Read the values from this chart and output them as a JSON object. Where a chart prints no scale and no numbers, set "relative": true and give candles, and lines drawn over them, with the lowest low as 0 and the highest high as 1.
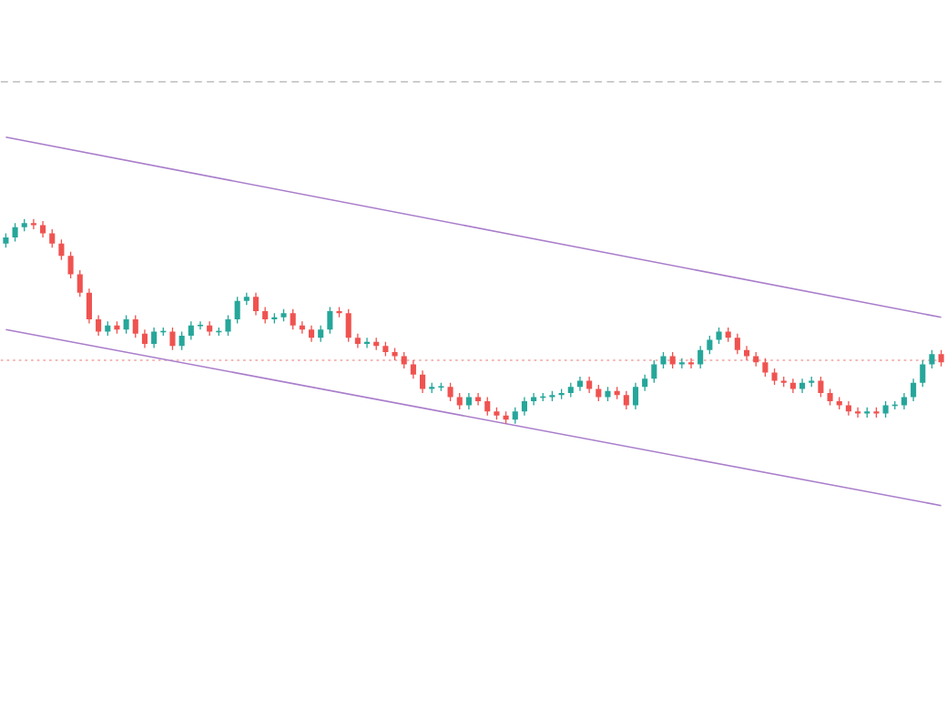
{
  "chart_data": {
    "type": "candlestick",
    "relative": true,
    "categories": [
      null,
      null,
      null,
      null,
      null,
      null,
      null,
      null,
      null,
      null,
      null,
      null,
      null,
      null,
      null,
      null,
      null,
      null,
      null,
      null,
      null,
      null,
      null,
      null,
      null,
      null,
      null,
      null,
      null,
      null,
      null,
      null,
      null,
      null,
      null,
      null,
      null,
      null,
      null,
      null,
      null,
      null,
      null,
      null,
      null,
      null,
      null,
      null,
      null,
      null,
      null,
      null,
      null,
      null,
      null,
      null,
      null,
      null,
      null,
      null,
      null,
      null,
      null,
      null,
      null,
      null,
      null,
      null,
      null,
      null,
      null,
      null,
      null,
      null,
      null,
      null,
      null,
      null,
      null,
      null,
      null,
      null,
      null,
      null,
      null,
      null,
      null,
      null,
      null,
      null,
      null,
      null,
      null,
      null,
      null,
      null,
      null,
      null,
      null,
      null,
      null,
      null
    ],
    "ohlc": [
      [
        0.88,
        0.93,
        0.86,
        0.91
      ],
      [
        0.91,
        0.98,
        0.89,
        0.96
      ],
      [
        0.96,
        1.0,
        0.94,
        0.98
      ],
      [
        0.98,
        1.0,
        0.95,
        0.97
      ],
      [
        0.97,
        0.99,
        0.91,
        0.93
      ],
      [
        0.93,
        0.95,
        0.86,
        0.88
      ],
      [
        0.88,
        0.9,
        0.8,
        0.82
      ],
      [
        0.82,
        0.84,
        0.71,
        0.73
      ],
      [
        0.73,
        0.75,
        0.62,
        0.64
      ],
      [
        0.64,
        0.66,
        0.49,
        0.51
      ],
      [
        0.51,
        0.53,
        0.43,
        0.45
      ],
      [
        0.45,
        0.5,
        0.43,
        0.48
      ],
      [
        0.48,
        0.5,
        0.44,
        0.46
      ],
      [
        0.46,
        0.53,
        0.44,
        0.51
      ],
      [
        0.51,
        0.53,
        0.42,
        0.44
      ],
      [
        0.44,
        0.46,
        0.37,
        0.39
      ],
      [
        0.39,
        0.47,
        0.37,
        0.45
      ],
      [
        0.45,
        0.47,
        0.43,
        0.45
      ],
      [
        0.45,
        0.47,
        0.36,
        0.38
      ],
      [
        0.38,
        0.45,
        0.36,
        0.43
      ],
      [
        0.43,
        0.5,
        0.41,
        0.48
      ],
      [
        0.48,
        0.5,
        0.46,
        0.48
      ],
      [
        0.48,
        0.5,
        0.43,
        0.45
      ],
      [
        0.45,
        0.47,
        0.43,
        0.45
      ],
      [
        0.45,
        0.53,
        0.43,
        0.51
      ],
      [
        0.51,
        0.62,
        0.49,
        0.6
      ],
      [
        0.6,
        0.64,
        0.58,
        0.62
      ],
      [
        0.62,
        0.64,
        0.53,
        0.55
      ],
      [
        0.55,
        0.57,
        0.49,
        0.51
      ],
      [
        0.51,
        0.54,
        0.49,
        0.52
      ],
      [
        0.52,
        0.56,
        0.5,
        0.54
      ],
      [
        0.54,
        0.56,
        0.46,
        0.48
      ],
      [
        0.48,
        0.5,
        0.44,
        0.46
      ],
      [
        0.46,
        0.48,
        0.4,
        0.42
      ],
      [
        0.42,
        0.48,
        0.4,
        0.46
      ],
      [
        0.46,
        0.57,
        0.44,
        0.55
      ],
      [
        0.55,
        0.57,
        0.52,
        0.54
      ],
      [
        0.54,
        0.56,
        0.4,
        0.42
      ],
      [
        0.42,
        0.44,
        0.37,
        0.39
      ],
      [
        0.39,
        0.42,
        0.37,
        0.4
      ],
      [
        0.4,
        0.42,
        0.36,
        0.38
      ],
      [
        0.38,
        0.4,
        0.33,
        0.35
      ],
      [
        0.35,
        0.37,
        0.31,
        0.33
      ],
      [
        0.33,
        0.35,
        0.27,
        0.29
      ],
      [
        0.29,
        0.31,
        0.22,
        0.24
      ],
      [
        0.24,
        0.26,
        0.15,
        0.17
      ],
      [
        0.17,
        0.2,
        0.15,
        0.18
      ],
      [
        0.18,
        0.2,
        0.16,
        0.18
      ],
      [
        0.18,
        0.2,
        0.11,
        0.13
      ],
      [
        0.13,
        0.15,
        0.07,
        0.09
      ],
      [
        0.09,
        0.15,
        0.07,
        0.13
      ],
      [
        0.13,
        0.15,
        0.09,
        0.11
      ],
      [
        0.11,
        0.13,
        0.04,
        0.06
      ],
      [
        0.06,
        0.08,
        0.02,
        0.04
      ],
      [
        0.04,
        0.06,
        0.0,
        0.02
      ],
      [
        0.02,
        0.08,
        0.0,
        0.06
      ],
      [
        0.06,
        0.13,
        0.04,
        0.11
      ],
      [
        0.11,
        0.15,
        0.09,
        0.13
      ],
      [
        0.13,
        0.15,
        0.11,
        0.13
      ],
      [
        0.13,
        0.16,
        0.11,
        0.14
      ],
      [
        0.14,
        0.17,
        0.12,
        0.15
      ],
      [
        0.15,
        0.2,
        0.13,
        0.18
      ],
      [
        0.18,
        0.23,
        0.16,
        0.21
      ],
      [
        0.21,
        0.23,
        0.15,
        0.17
      ],
      [
        0.17,
        0.19,
        0.11,
        0.13
      ],
      [
        0.13,
        0.18,
        0.11,
        0.16
      ],
      [
        0.16,
        0.18,
        0.12,
        0.14
      ],
      [
        0.14,
        0.16,
        0.07,
        0.09
      ],
      [
        0.09,
        0.2,
        0.07,
        0.18
      ],
      [
        0.18,
        0.24,
        0.16,
        0.22
      ],
      [
        0.22,
        0.31,
        0.2,
        0.29
      ],
      [
        0.29,
        0.35,
        0.27,
        0.33
      ],
      [
        0.33,
        0.35,
        0.27,
        0.29
      ],
      [
        0.29,
        0.32,
        0.27,
        0.3
      ],
      [
        0.3,
        0.32,
        0.27,
        0.29
      ],
      [
        0.29,
        0.38,
        0.27,
        0.36
      ],
      [
        0.36,
        0.43,
        0.34,
        0.41
      ],
      [
        0.41,
        0.47,
        0.39,
        0.45
      ],
      [
        0.45,
        0.47,
        0.4,
        0.42
      ],
      [
        0.42,
        0.44,
        0.34,
        0.36
      ],
      [
        0.36,
        0.38,
        0.31,
        0.33
      ],
      [
        0.33,
        0.35,
        0.28,
        0.3
      ],
      [
        0.3,
        0.32,
        0.23,
        0.25
      ],
      [
        0.25,
        0.27,
        0.19,
        0.21
      ],
      [
        0.21,
        0.23,
        0.18,
        0.2
      ],
      [
        0.2,
        0.22,
        0.15,
        0.17
      ],
      [
        0.17,
        0.22,
        0.15,
        0.2
      ],
      [
        0.2,
        0.23,
        0.18,
        0.21
      ],
      [
        0.21,
        0.23,
        0.13,
        0.15
      ],
      [
        0.15,
        0.17,
        0.09,
        0.11
      ],
      [
        0.11,
        0.13,
        0.07,
        0.09
      ],
      [
        0.09,
        0.11,
        0.04,
        0.06
      ],
      [
        0.06,
        0.08,
        0.03,
        0.05
      ],
      [
        0.05,
        0.08,
        0.03,
        0.06
      ],
      [
        0.06,
        0.08,
        0.03,
        0.05
      ],
      [
        0.05,
        0.11,
        0.03,
        0.09
      ],
      [
        0.09,
        0.11,
        0.07,
        0.09
      ],
      [
        0.09,
        0.15,
        0.07,
        0.13
      ],
      [
        0.13,
        0.22,
        0.11,
        0.2
      ],
      [
        0.2,
        0.31,
        0.18,
        0.29
      ],
      [
        0.29,
        0.36,
        0.27,
        0.34
      ],
      [
        0.34,
        0.36,
        0.28,
        0.3
      ]
    ],
    "series": [
      {
        "type": "line",
        "values": [
          1.4,
          null,
          null,
          null,
          null,
          null,
          null,
          null,
          null,
          null,
          null,
          null,
          null,
          null,
          null,
          null,
          null,
          null,
          null,
          null,
          null,
          null,
          null,
          null,
          null,
          null,
          null,
          null,
          null,
          null,
          null,
          null,
          null,
          null,
          null,
          null,
          null,
          null,
          null,
          null,
          null,
          null,
          null,
          null,
          null,
          null,
          null,
          null,
          null,
          null,
          null,
          null,
          null,
          null,
          null,
          null,
          null,
          null,
          null,
          null,
          null,
          null,
          null,
          null,
          null,
          null,
          null,
          null,
          null,
          null,
          null,
          null,
          null,
          null,
          null,
          null,
          null,
          null,
          null,
          null,
          null,
          null,
          null,
          null,
          null,
          null,
          null,
          null,
          null,
          null,
          null,
          null,
          null,
          null,
          null,
          null,
          null,
          null,
          null,
          null,
          null,
          0.52
        ],
        "color": "#a97dcb"
      },
      {
        "type": "line",
        "values": [
          0.46,
          null,
          null,
          null,
          null,
          null,
          null,
          null,
          null,
          null,
          null,
          null,
          null,
          null,
          null,
          null,
          null,
          null,
          null,
          null,
          null,
          null,
          null,
          null,
          null,
          null,
          null,
          null,
          null,
          null,
          null,
          null,
          null,
          null,
          null,
          null,
          null,
          null,
          null,
          null,
          null,
          null,
          null,
          null,
          null,
          null,
          null,
          null,
          null,
          null,
          null,
          null,
          null,
          null,
          null,
          null,
          null,
          null,
          null,
          null,
          null,
          null,
          null,
          null,
          null,
          null,
          null,
          null,
          null,
          null,
          null,
          null,
          null,
          null,
          null,
          null,
          null,
          null,
          null,
          null,
          null,
          null,
          null,
          null,
          null,
          null,
          null,
          null,
          null,
          null,
          null,
          null,
          null,
          null,
          null,
          null,
          null,
          null,
          null,
          null,
          null,
          -0.4
        ],
        "color": "#a97dcb"
      }
    ],
    "ref_lines": [
      {
        "axis": "y",
        "value": 1.67,
        "color": "#b4b4b4",
        "line_style": "dashed"
      },
      {
        "axis": "y",
        "value": 0.31,
        "color": "#f2a3a3",
        "line_style": "dotted"
      }
    ]
  }
}
